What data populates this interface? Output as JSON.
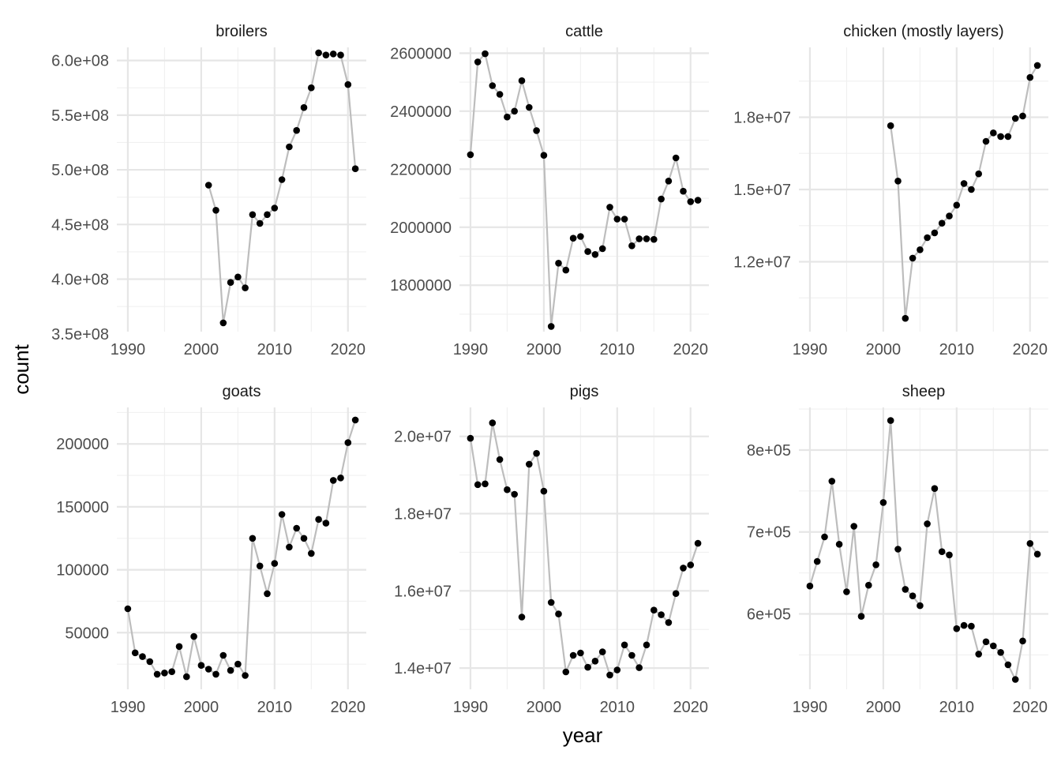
{
  "axis_titles": {
    "x": "year",
    "y": "count"
  },
  "colors": {
    "point": "#000000",
    "line": "#bdbdbd",
    "grid_major": "#e6e6e6",
    "grid_minor": "#f0f0f0",
    "background": "#ffffff"
  },
  "chart_data": [
    {
      "type": "line",
      "title": "broilers",
      "xlim": [
        1988.5,
        2022.5
      ],
      "ylim": [
        352000000.0,
        612000000.0
      ],
      "x_ticks": [
        1990,
        2000,
        2010,
        2020
      ],
      "x_tick_labels": [
        "1990",
        "2000",
        "2010",
        "2020"
      ],
      "y_ticks": [
        350000000.0,
        400000000.0,
        450000000.0,
        500000000.0,
        550000000.0,
        600000000.0
      ],
      "y_tick_labels": [
        "3.5e+08",
        "4.0e+08",
        "4.5e+08",
        "5.0e+08",
        "5.5e+08",
        "6.0e+08"
      ],
      "x": [
        2001,
        2002,
        2003,
        2004,
        2005,
        2006,
        2007,
        2008,
        2009,
        2010,
        2011,
        2012,
        2013,
        2014,
        2015,
        2016,
        2017,
        2018,
        2019,
        2020,
        2021
      ],
      "y": [
        486000000,
        463000000,
        360000000,
        397000000,
        402000000,
        392000000,
        459000000,
        451000000,
        459000000,
        465000000,
        491000000,
        521000000,
        536000000,
        557000000,
        575000000,
        607000000,
        605000000,
        606000000,
        605000000,
        578000000,
        501000000
      ]
    },
    {
      "type": "line",
      "title": "cattle",
      "xlim": [
        1988.5,
        2022.5
      ],
      "ylim": [
        1640000,
        2620000
      ],
      "x_ticks": [
        1990,
        2000,
        2010,
        2020
      ],
      "x_tick_labels": [
        "1990",
        "2000",
        "2010",
        "2020"
      ],
      "y_ticks": [
        1800000,
        2000000,
        2200000,
        2400000,
        2600000
      ],
      "y_tick_labels": [
        "1800000",
        "2000000",
        "2200000",
        "2400000",
        "2600000"
      ],
      "x": [
        1990,
        1991,
        1992,
        1993,
        1994,
        1995,
        1996,
        1997,
        1998,
        1999,
        2000,
        2001,
        2002,
        2003,
        2004,
        2005,
        2006,
        2007,
        2008,
        2009,
        2010,
        2011,
        2012,
        2013,
        2014,
        2015,
        2016,
        2017,
        2018,
        2019,
        2020,
        2021
      ],
      "y": [
        2250000,
        2570000,
        2598000,
        2488000,
        2458000,
        2380000,
        2400000,
        2505000,
        2413000,
        2333000,
        2248000,
        1658000,
        1876000,
        1852000,
        1962000,
        1968000,
        1916000,
        1906000,
        1926000,
        2069000,
        2028000,
        2028000,
        1936000,
        1960000,
        1960000,
        1958000,
        2097000,
        2159000,
        2239000,
        2124000,
        2088000,
        2093000
      ]
    },
    {
      "type": "line",
      "title": "chicken (mostly layers)",
      "xlim": [
        1988.5,
        2022.5
      ],
      "ylim": [
        9100000.0,
        20900000.0
      ],
      "x_ticks": [
        1990,
        2000,
        2010,
        2020
      ],
      "x_tick_labels": [
        "1990",
        "2000",
        "2010",
        "2020"
      ],
      "y_ticks": [
        12000000.0,
        15000000.0,
        18000000.0
      ],
      "y_tick_labels": [
        "1.2e+07",
        "1.5e+07",
        "1.8e+07"
      ],
      "x": [
        2001,
        2002,
        2003,
        2004,
        2005,
        2006,
        2007,
        2008,
        2009,
        2010,
        2011,
        2012,
        2013,
        2014,
        2015,
        2016,
        2017,
        2018,
        2019,
        2020,
        2021
      ],
      "y": [
        17650000,
        15350000,
        9650000,
        12150000,
        12500000,
        13000000,
        13200000,
        13600000,
        13900000,
        14350000,
        15250000,
        15000000,
        15650000,
        17000000,
        17350000,
        17200000,
        17200000,
        17950000,
        18050000,
        19650000,
        20150000
      ]
    },
    {
      "type": "line",
      "title": "goats",
      "xlim": [
        1988.5,
        2022.5
      ],
      "ylim": [
        5000,
        229000
      ],
      "x_ticks": [
        1990,
        2000,
        2010,
        2020
      ],
      "x_tick_labels": [
        "1990",
        "2000",
        "2010",
        "2020"
      ],
      "y_ticks": [
        50000,
        100000,
        150000,
        200000
      ],
      "y_tick_labels": [
        "50000",
        "100000",
        "150000",
        "200000"
      ],
      "x": [
        1990,
        1991,
        1992,
        1993,
        1994,
        1995,
        1996,
        1997,
        1998,
        1999,
        2000,
        2001,
        2002,
        2003,
        2004,
        2005,
        2006,
        2007,
        2008,
        2009,
        2010,
        2011,
        2012,
        2013,
        2014,
        2015,
        2016,
        2017,
        2018,
        2019,
        2020,
        2021
      ],
      "y": [
        69000,
        34000,
        31000,
        27000,
        17000,
        18000,
        19000,
        39000,
        15000,
        47000,
        24000,
        21000,
        17000,
        32000,
        20000,
        25000,
        16000,
        125000,
        103000,
        81000,
        105000,
        144000,
        118000,
        133000,
        125000,
        113000,
        140000,
        137000,
        171000,
        173000,
        201000,
        219000
      ]
    },
    {
      "type": "line",
      "title": "pigs",
      "xlim": [
        1988.5,
        2022.5
      ],
      "ylim": [
        13450000.0,
        20750000.0
      ],
      "x_ticks": [
        1990,
        2000,
        2010,
        2020
      ],
      "x_tick_labels": [
        "1990",
        "2000",
        "2010",
        "2020"
      ],
      "y_ticks": [
        14000000.0,
        16000000.0,
        18000000.0,
        20000000.0
      ],
      "y_tick_labels": [
        "1.4e+07",
        "1.6e+07",
        "1.8e+07",
        "2.0e+07"
      ],
      "x": [
        1990,
        1991,
        1992,
        1993,
        1994,
        1995,
        1996,
        1997,
        1998,
        1999,
        2000,
        2001,
        2002,
        2003,
        2004,
        2005,
        2006,
        2007,
        2008,
        2009,
        2010,
        2011,
        2012,
        2013,
        2014,
        2015,
        2016,
        2017,
        2018,
        2019,
        2020,
        2021
      ],
      "y": [
        19950000,
        18750000,
        18770000,
        20350000,
        19400000,
        18620000,
        18500000,
        15320000,
        19280000,
        19560000,
        18580000,
        15700000,
        15400000,
        13900000,
        14330000,
        14390000,
        14020000,
        14180000,
        14420000,
        13820000,
        13950000,
        14600000,
        14330000,
        14010000,
        14600000,
        15500000,
        15380000,
        15180000,
        15930000,
        16590000,
        16670000,
        17230000
      ]
    },
    {
      "type": "line",
      "title": "sheep",
      "xlim": [
        1988.5,
        2022.5
      ],
      "ylim": [
        508000,
        852000
      ],
      "x_ticks": [
        1990,
        2000,
        2010,
        2020
      ],
      "x_tick_labels": [
        "1990",
        "2000",
        "2010",
        "2020"
      ],
      "y_ticks": [
        600000,
        700000,
        800000
      ],
      "y_tick_labels": [
        "6e+05",
        "7e+05",
        "8e+05"
      ],
      "x": [
        1990,
        1991,
        1992,
        1993,
        1994,
        1995,
        1996,
        1997,
        1998,
        1999,
        2000,
        2001,
        2002,
        2003,
        2004,
        2005,
        2006,
        2007,
        2008,
        2009,
        2010,
        2011,
        2012,
        2013,
        2014,
        2015,
        2016,
        2017,
        2018,
        2019,
        2020,
        2021
      ],
      "y": [
        634000,
        664000,
        694000,
        762000,
        685000,
        627000,
        707000,
        597000,
        635000,
        660000,
        736000,
        836000,
        679000,
        630000,
        622000,
        610000,
        710000,
        753000,
        676000,
        672000,
        582000,
        586000,
        585000,
        551000,
        566000,
        561000,
        553000,
        538000,
        520000,
        567000,
        686000,
        673000
      ]
    }
  ]
}
